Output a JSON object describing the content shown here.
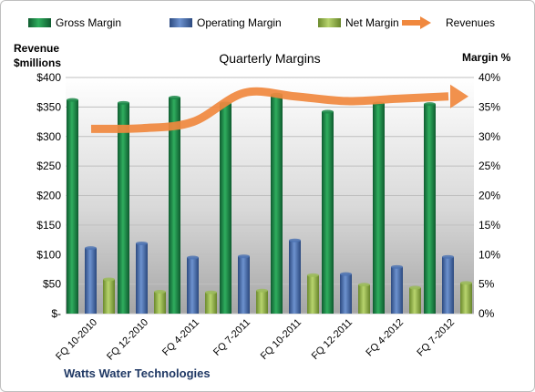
{
  "company": "Watts Water Technologies",
  "chart_data": {
    "type": "bar",
    "title": "Quarterly Margins",
    "ylabel_left": [
      "Revenue",
      "$millions"
    ],
    "ylabel_right": "Margin %",
    "categories": [
      "FQ 10-2010",
      "FQ 12-2010",
      "FQ 4-2011",
      "FQ 7-2011",
      "FQ 10-2011",
      "FQ 12-2011",
      "FQ 4-2012",
      "FQ 7-2012"
    ],
    "left_ticks": [
      "$-",
      "$50",
      "$100",
      "$150",
      "$200",
      "$250",
      "$300",
      "$350",
      "$400"
    ],
    "right_ticks": [
      "0%",
      "5%",
      "10%",
      "15%",
      "20%",
      "25%",
      "30%",
      "35%",
      "40%"
    ],
    "ylim_left": [
      0,
      400
    ],
    "ylim_right": [
      0,
      40
    ],
    "legend_position": "top",
    "series": [
      {
        "name": "Gross Margin",
        "kind": "bar",
        "axis": "right",
        "color": "#1e8a4a",
        "values": [
          36.2,
          35.7,
          36.6,
          35.6,
          37.1,
          34.2,
          35.6,
          35.5
        ]
      },
      {
        "name": "Operating Margin",
        "kind": "bar",
        "axis": "right",
        "color": "#4f74b3",
        "values": [
          11.1,
          11.9,
          9.5,
          9.7,
          12.4,
          6.7,
          7.9,
          9.6
        ]
      },
      {
        "name": "Net Margin",
        "kind": "bar",
        "axis": "right",
        "color": "#9bbb59",
        "values": [
          5.8,
          3.7,
          3.6,
          3.9,
          6.5,
          4.9,
          4.4,
          5.2
        ]
      },
      {
        "name": "Revenues",
        "kind": "line",
        "axis": "left",
        "color": "#f0883e",
        "values": [
          313,
          314,
          325,
          374,
          368,
          360,
          364,
          368
        ]
      }
    ]
  }
}
